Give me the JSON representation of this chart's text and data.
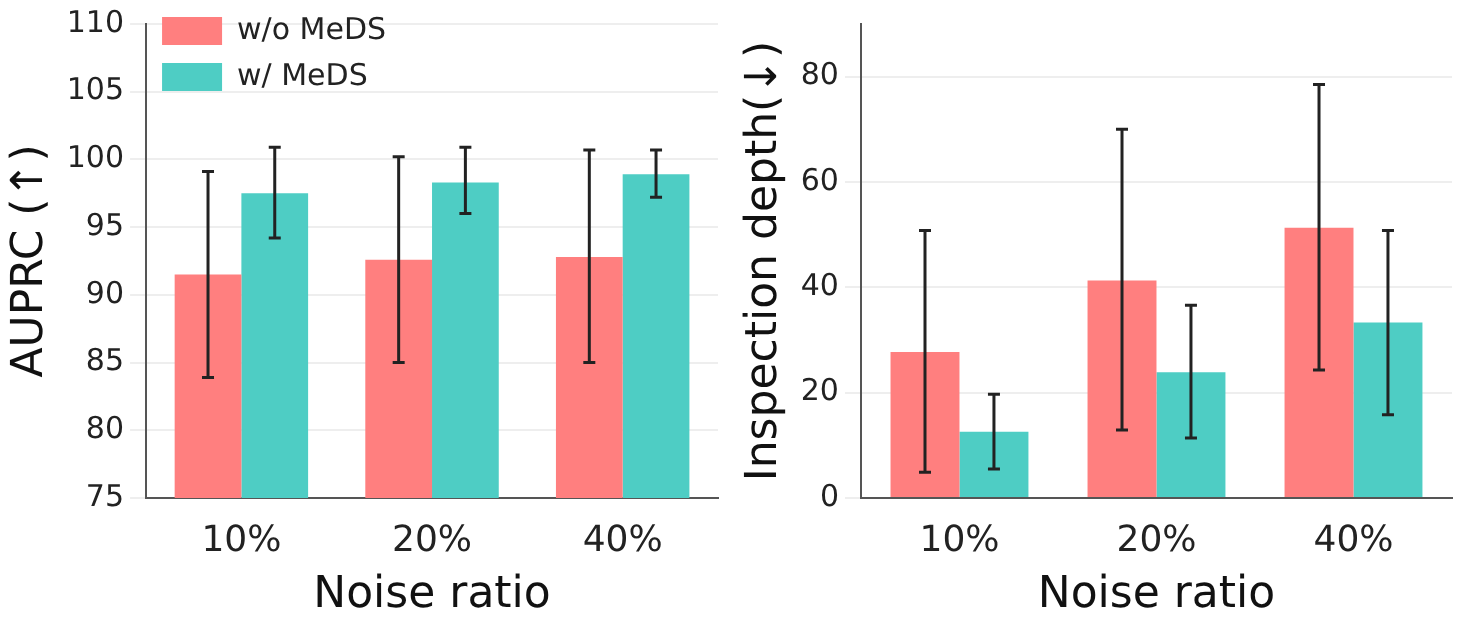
{
  "chart_data": [
    {
      "type": "bar",
      "xlabel": "Noise ratio",
      "ylabel": "AUPRC (↑)",
      "categories": [
        "10%",
        "20%",
        "40%"
      ],
      "series": [
        {
          "name": "w/o MeDS",
          "color": "#ff7f7f",
          "values": [
            91.5,
            92.6,
            92.8
          ],
          "errors": [
            [
              83.9,
              99.1
            ],
            [
              85.0,
              100.2
            ],
            [
              85.0,
              100.7
            ]
          ]
        },
        {
          "name": "w/ MeDS",
          "color": "#4ecdc4",
          "values": [
            97.5,
            98.3,
            98.9
          ],
          "errors": [
            [
              94.2,
              100.9
            ],
            [
              96.0,
              100.9
            ],
            [
              97.2,
              100.7
            ]
          ]
        }
      ],
      "ylim": [
        75,
        110
      ],
      "yticks": [
        75,
        80,
        85,
        90,
        95,
        100,
        105,
        110
      ],
      "grid": "y",
      "legend": "top left"
    },
    {
      "type": "bar",
      "xlabel": "Noise ratio",
      "ylabel": "Inspection depth(↓)",
      "categories": [
        "10%",
        "20%",
        "40%"
      ],
      "series": [
        {
          "color": "#ff7f7f",
          "values": [
            27.7,
            41.3,
            51.3
          ],
          "errors": [
            [
              4.9,
              50.8
            ],
            [
              12.9,
              70.0
            ],
            [
              24.3,
              78.5
            ]
          ]
        },
        {
          "color": "#4ecdc4",
          "values": [
            12.6,
            23.9,
            33.3
          ],
          "errors": [
            [
              5.5,
              19.7
            ],
            [
              11.4,
              36.6
            ],
            [
              15.8,
              50.8
            ]
          ]
        }
      ],
      "ylim": [
        0,
        90
      ],
      "yticks": [
        0,
        20,
        40,
        60,
        80
      ],
      "grid": "y",
      "legend": false
    }
  ]
}
